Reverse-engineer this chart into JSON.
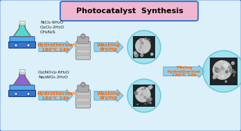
{
  "title": "Photocatalyst  Synthesis",
  "title_box_color": "#F0B8D0",
  "title_text_color": "#000000",
  "bg_color": "#FFFFFF",
  "outer_border_color": "#4477CC",
  "inner_bg_color": "#DCF0FA",
  "arrow_color": "#88CCEE",
  "arrow_edge_color": "#66AACC",
  "arrow_label_color": "#FF6600",
  "top_chemicals": "NiCl₂·6H₂O\nCuCl₂·2H₂O\nCH₄N₂S",
  "bottom_chemicals": "Co(NO₃)₂·6H₂O\nNa₂WO₄·2H₂O",
  "hydrothermal_label": "Hydrothermal\n180℃ 24h",
  "washing_label": "Washing\ndrying",
  "mixing_label": "Mixing\nhydrothermal\n180℃ 24h",
  "flask_top_color": "#40D8C8",
  "flask_bottom_color": "#8855CC",
  "hotplate_color": "#3377CC",
  "hotplate_top_color": "#55AAEE",
  "circle_color": "#88DDEE",
  "final_circle_color": "#88DDEE"
}
